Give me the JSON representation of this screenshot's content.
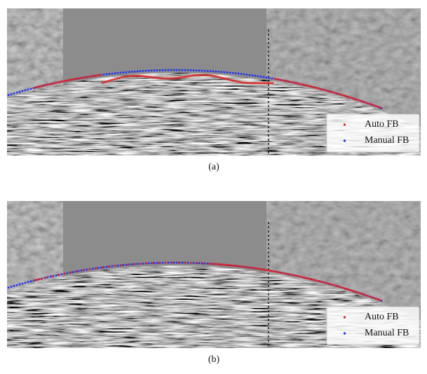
{
  "panels": [
    {
      "caption": "(a)",
      "legend": [
        "Auto FB",
        "Manual FB"
      ]
    },
    {
      "caption": "(b)",
      "legend": [
        "Auto FB",
        "Manual FB"
      ]
    }
  ]
}
